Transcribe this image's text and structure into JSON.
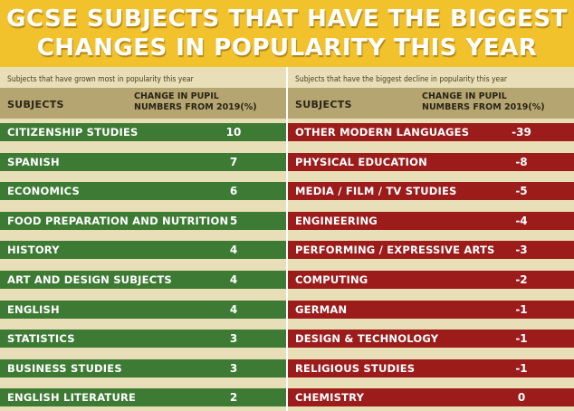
{
  "title": {
    "line1": "GCSE SUBJECTS THAT HAVE THE BIGGEST",
    "line2": "CHANGES IN POPULARITY THIS YEAR"
  },
  "left": {
    "subtitle": "Subjects that have grown most in popularity this year",
    "col_subject": "SUBJECTS",
    "col_change": "CHANGE IN PUPIL NUMBERS FROM 2019(%)"
  },
  "right": {
    "subtitle": "Subjects that have the biggest decline in popularity this year",
    "col_subject": "SUBJECTS",
    "col_change": "CHANGE IN PUPIL NUMBERS FROM 2019(%)"
  },
  "colors": {
    "growth": "#3d7a34",
    "decline": "#9c1b1b",
    "title_bg": "#f2c22d",
    "header_bg": "#b5a571",
    "page_bg": "#e8dfb8"
  },
  "chart_data": [
    {
      "type": "table",
      "title": "Subjects that have grown most in popularity this year",
      "columns": [
        "SUBJECTS",
        "CHANGE IN PUPIL NUMBERS FROM 2019(%)"
      ],
      "categories": [
        "CITIZENSHIP STUDIES",
        "SPANISH",
        "ECONOMICS",
        "FOOD PREPARATION AND NUTRITION",
        "HISTORY",
        "ART AND DESIGN SUBJECTS",
        "ENGLISH",
        "STATISTICS",
        "BUSINESS STUDIES",
        "ENGLISH LITERATURE"
      ],
      "values": [
        10,
        7,
        6,
        5,
        4,
        4,
        4,
        3,
        3,
        2
      ]
    },
    {
      "type": "table",
      "title": "Subjects that have the biggest decline in popularity this year",
      "columns": [
        "SUBJECTS",
        "CHANGE IN PUPIL NUMBERS FROM 2019(%)"
      ],
      "categories": [
        "OTHER MODERN LANGUAGES",
        "PHYSICAL EDUCATION",
        "MEDIA / FILM / TV STUDIES",
        "ENGINEERING",
        "PERFORMING / EXPRESSIVE ARTS",
        "COMPUTING",
        "GERMAN",
        "DESIGN & TECHNOLOGY",
        "RELIGIOUS STUDIES",
        "CHEMISTRY"
      ],
      "values": [
        -39,
        -8,
        -5,
        -4,
        -3,
        -2,
        -1,
        -1,
        -1,
        0
      ]
    }
  ]
}
